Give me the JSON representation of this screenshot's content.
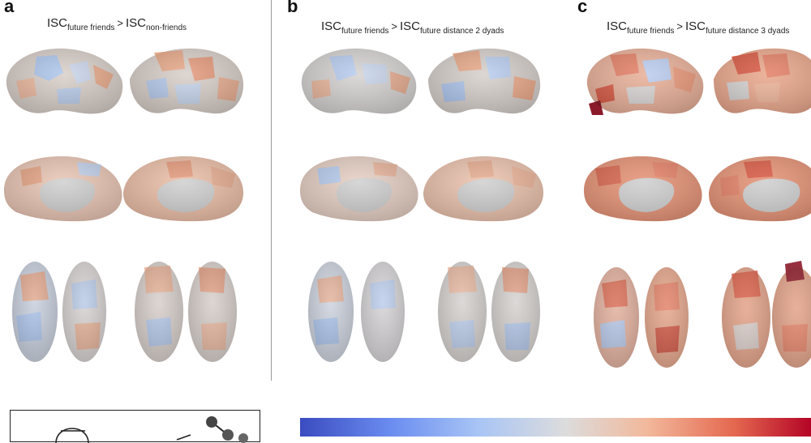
{
  "panels": [
    {
      "letter": "a",
      "title": {
        "lhs": "ISC",
        "lhs_sub": "future friends",
        "op": ">",
        "rhs": "ISC",
        "rhs_sub": "non-friends"
      }
    },
    {
      "letter": "b",
      "title": {
        "lhs": "ISC",
        "lhs_sub": "future friends",
        "op": ">",
        "rhs": "ISC",
        "rhs_sub": "future distance 2 dyads"
      }
    },
    {
      "letter": "c",
      "title": {
        "lhs": "ISC",
        "lhs_sub": "future friends",
        "op": ">",
        "rhs": "ISC",
        "rhs_sub": "future distance 3 dyads"
      }
    }
  ],
  "brain_views": [
    "lateral",
    "medial",
    "ventral-dorsal"
  ],
  "colorbar": {
    "colors": [
      "#3b4cc0",
      "#6b8df0",
      "#a9c5f5",
      "#dcdcdc",
      "#f2b89b",
      "#e4684f",
      "#b40426"
    ]
  }
}
